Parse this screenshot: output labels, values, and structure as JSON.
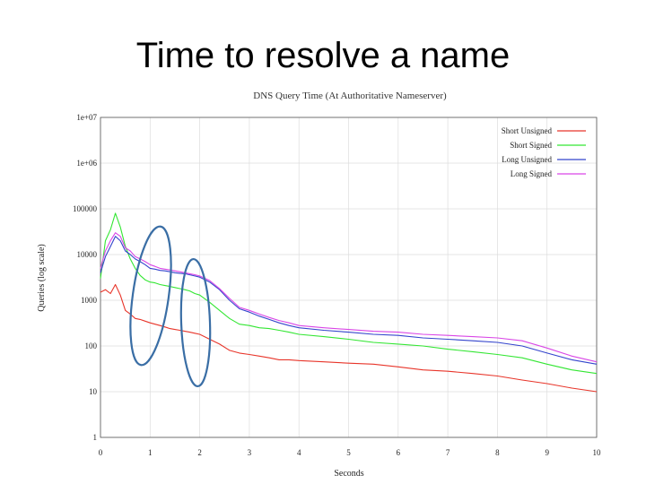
{
  "slide": {
    "title": "Time to resolve a name"
  },
  "chart_data": {
    "type": "line",
    "title": "DNS Query Time (At Authoritative Nameserver)",
    "xlabel": "Seconds",
    "ylabel": "Queries (log scale)",
    "xlim": [
      0,
      10
    ],
    "ylim": [
      1,
      10000000
    ],
    "log_y": true,
    "grid": true,
    "legend_position": "top-right",
    "x_ticks": [
      "0",
      "1",
      "2",
      "3",
      "4",
      "5",
      "6",
      "7",
      "8",
      "9",
      "10"
    ],
    "y_ticks": [
      "1",
      "10",
      "100",
      "1000",
      "10000",
      "100000",
      "1e+06",
      "1e+07"
    ],
    "x": [
      0,
      0.1,
      0.2,
      0.3,
      0.4,
      0.5,
      0.6,
      0.7,
      0.8,
      0.9,
      1,
      1.1,
      1.2,
      1.3,
      1.4,
      1.5,
      1.6,
      1.7,
      1.8,
      1.9,
      2,
      2.2,
      2.4,
      2.6,
      2.8,
      3,
      3.2,
      3.4,
      3.6,
      3.8,
      4,
      4.5,
      5,
      5.5,
      6,
      6.5,
      7,
      7.5,
      8,
      8.5,
      9,
      9.5,
      10
    ],
    "series": [
      {
        "name": "Short Unsigned",
        "color": "#e8352a",
        "values": [
          1500,
          1700,
          1400,
          2200,
          1300,
          600,
          500,
          400,
          380,
          350,
          320,
          300,
          280,
          260,
          240,
          230,
          220,
          210,
          200,
          190,
          180,
          140,
          110,
          80,
          70,
          65,
          60,
          55,
          50,
          50,
          48,
          45,
          42,
          40,
          35,
          30,
          28,
          25,
          22,
          18,
          15,
          12,
          10
        ]
      },
      {
        "name": "Short Signed",
        "color": "#33e633",
        "values": [
          3000,
          20000,
          35000,
          80000,
          40000,
          15000,
          8000,
          5000,
          3500,
          2800,
          2500,
          2400,
          2200,
          2100,
          2000,
          1900,
          1800,
          1700,
          1600,
          1400,
          1300,
          900,
          600,
          400,
          300,
          280,
          250,
          240,
          220,
          200,
          180,
          160,
          140,
          120,
          110,
          100,
          85,
          75,
          65,
          55,
          40,
          30,
          25
        ]
      },
      {
        "name": "Long Unsigned",
        "color": "#3344cc",
        "values": [
          4000,
          9000,
          15000,
          25000,
          20000,
          12000,
          10000,
          8000,
          7000,
          6000,
          5000,
          4800,
          4500,
          4400,
          4200,
          4000,
          3900,
          3800,
          3600,
          3400,
          3200,
          2500,
          1700,
          1000,
          650,
          550,
          450,
          380,
          320,
          280,
          250,
          220,
          200,
          180,
          170,
          150,
          140,
          130,
          120,
          100,
          70,
          50,
          40
        ]
      },
      {
        "name": "Long Signed",
        "color": "#d946e6",
        "values": [
          5000,
          12000,
          20000,
          30000,
          25000,
          14000,
          12000,
          9000,
          8000,
          7000,
          6000,
          5500,
          5000,
          4800,
          4600,
          4400,
          4200,
          4000,
          3800,
          3600,
          3400,
          2700,
          1800,
          1100,
          700,
          600,
          500,
          420,
          360,
          320,
          280,
          250,
          230,
          210,
          200,
          180,
          170,
          160,
          150,
          130,
          90,
          60,
          45
        ]
      }
    ]
  }
}
